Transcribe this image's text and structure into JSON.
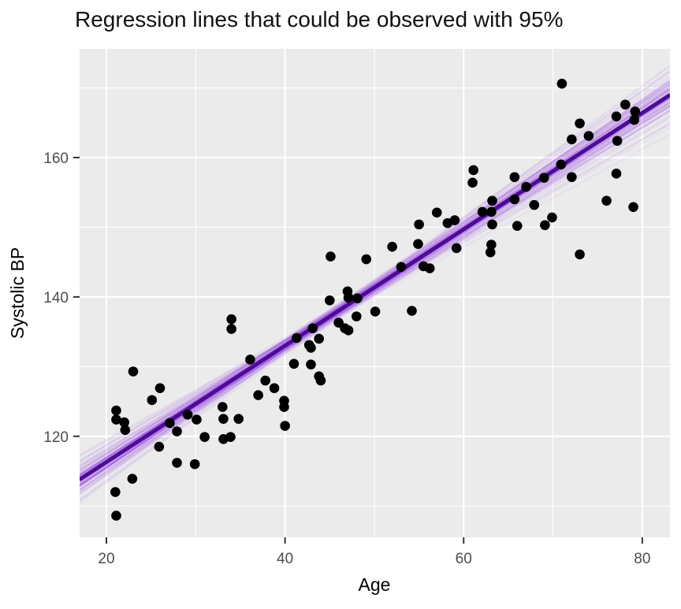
{
  "chart_data": {
    "type": "scatter",
    "title": "Regression lines that could be observed with 95%",
    "xlabel": "Age",
    "ylabel": "Systolic BP",
    "xlim": [
      17.0,
      83.1
    ],
    "ylim": [
      105.5,
      175.6
    ],
    "x_ticks": [
      20,
      40,
      60,
      80
    ],
    "y_ticks": [
      120,
      140,
      160
    ],
    "x_minor_ticks": [
      30,
      50,
      70
    ],
    "y_minor_ticks": [
      110,
      130,
      150,
      170
    ],
    "grid": "major-and-minor-white-on-grey",
    "legend": "none",
    "points": [
      [
        21.1,
        123.7
      ],
      [
        21.1,
        122.4
      ],
      [
        22.0,
        122.0
      ],
      [
        22.1,
        120.9
      ],
      [
        21.0,
        112.0
      ],
      [
        21.1,
        108.6
      ],
      [
        22.9,
        113.9
      ],
      [
        23.0,
        129.3
      ],
      [
        25.1,
        125.2
      ],
      [
        26.0,
        126.9
      ],
      [
        25.9,
        118.5
      ],
      [
        27.1,
        121.9
      ],
      [
        27.9,
        120.7
      ],
      [
        27.9,
        116.2
      ],
      [
        29.9,
        116.0
      ],
      [
        29.1,
        123.1
      ],
      [
        30.1,
        122.4
      ],
      [
        31.0,
        119.9
      ],
      [
        33.1,
        119.6
      ],
      [
        33.9,
        119.9
      ],
      [
        33.0,
        124.2
      ],
      [
        33.1,
        122.5
      ],
      [
        34.8,
        122.5
      ],
      [
        34.0,
        136.8
      ],
      [
        34.0,
        135.4
      ],
      [
        36.1,
        131.0
      ],
      [
        37.8,
        128.0
      ],
      [
        38.8,
        126.9
      ],
      [
        37.0,
        125.9
      ],
      [
        39.9,
        125.1
      ],
      [
        39.9,
        124.2
      ],
      [
        40.0,
        121.5
      ],
      [
        44.0,
        128.0
      ],
      [
        41.3,
        134.1
      ],
      [
        43.8,
        134.0
      ],
      [
        42.7,
        133.1
      ],
      [
        42.9,
        132.7
      ],
      [
        43.1,
        135.5
      ],
      [
        46.7,
        135.5
      ],
      [
        41.0,
        130.4
      ],
      [
        42.9,
        130.3
      ],
      [
        43.8,
        128.6
      ],
      [
        45.0,
        139.5
      ],
      [
        45.1,
        145.8
      ],
      [
        46.0,
        136.3
      ],
      [
        47.1,
        135.2
      ],
      [
        47.0,
        140.8
      ],
      [
        47.1,
        139.9
      ],
      [
        48.1,
        139.8
      ],
      [
        48.0,
        137.2
      ],
      [
        49.1,
        145.4
      ],
      [
        50.1,
        137.9
      ],
      [
        52.0,
        147.2
      ],
      [
        53.0,
        144.3
      ],
      [
        54.2,
        138.0
      ],
      [
        54.9,
        147.6
      ],
      [
        55.0,
        150.4
      ],
      [
        55.5,
        144.4
      ],
      [
        56.2,
        144.1
      ],
      [
        57.0,
        152.1
      ],
      [
        58.2,
        150.6
      ],
      [
        59.0,
        151.0
      ],
      [
        59.2,
        147.0
      ],
      [
        61.1,
        158.2
      ],
      [
        61.0,
        156.4
      ],
      [
        62.1,
        152.2
      ],
      [
        63.2,
        153.8
      ],
      [
        63.1,
        152.2
      ],
      [
        63.2,
        150.4
      ],
      [
        63.1,
        147.5
      ],
      [
        63.0,
        146.4
      ],
      [
        65.7,
        157.2
      ],
      [
        65.7,
        154.0
      ],
      [
        66.0,
        150.2
      ],
      [
        67.0,
        155.8
      ],
      [
        67.9,
        153.2
      ],
      [
        69.0,
        157.1
      ],
      [
        69.1,
        150.3
      ],
      [
        69.9,
        151.4
      ],
      [
        70.9,
        159.0
      ],
      [
        71.0,
        170.6
      ],
      [
        72.1,
        162.6
      ],
      [
        72.1,
        157.2
      ],
      [
        73.0,
        164.9
      ],
      [
        73.0,
        146.1
      ],
      [
        74.0,
        163.1
      ],
      [
        77.1,
        165.9
      ],
      [
        78.1,
        167.6
      ],
      [
        79.2,
        166.6
      ],
      [
        79.1,
        165.4
      ],
      [
        77.2,
        162.4
      ],
      [
        77.1,
        157.7
      ],
      [
        76.0,
        153.8
      ],
      [
        79.0,
        152.9
      ]
    ],
    "fit_line": {
      "slope": 0.835,
      "intercept": 99.6,
      "color": "#4c0c96",
      "width": 5
    },
    "ensemble_lines": {
      "pivot_age": 50,
      "color": "#8a2be2",
      "width": 2.5,
      "lines": [
        [
          0.78,
          140.9,
          0.1
        ],
        [
          0.8,
          141.0,
          0.12
        ],
        [
          0.82,
          141.5,
          0.14
        ],
        [
          0.84,
          141.2,
          0.14
        ],
        [
          0.86,
          141.6,
          0.12
        ],
        [
          0.88,
          141.9,
          0.1
        ],
        [
          0.9,
          141.4,
          0.08
        ],
        [
          0.92,
          142.1,
          0.07
        ],
        [
          0.76,
          140.6,
          0.08
        ],
        [
          0.74,
          140.4,
          0.07
        ],
        [
          0.83,
          141.0,
          0.16
        ],
        [
          0.85,
          141.5,
          0.16
        ],
        [
          0.81,
          141.2,
          0.15
        ],
        [
          0.87,
          141.1,
          0.11
        ],
        [
          0.79,
          141.7,
          0.1
        ],
        [
          0.84,
          140.8,
          0.15
        ],
        [
          0.86,
          140.6,
          0.1
        ],
        [
          0.82,
          142.0,
          0.11
        ],
        [
          0.88,
          140.9,
          0.09
        ],
        [
          0.8,
          140.3,
          0.09
        ],
        [
          0.84,
          142.3,
          0.09
        ],
        [
          0.9,
          142.5,
          0.06
        ],
        [
          0.72,
          141.0,
          0.06
        ],
        [
          0.95,
          141.8,
          0.05
        ],
        [
          0.7,
          140.2,
          0.05
        ],
        [
          0.83,
          141.8,
          0.14
        ],
        [
          0.85,
          140.9,
          0.14
        ],
        [
          0.81,
          140.5,
          0.12
        ],
        [
          0.87,
          141.7,
          0.12
        ],
        [
          0.83,
          140.2,
          0.11
        ],
        [
          0.86,
          142.2,
          0.1
        ],
        [
          0.78,
          141.5,
          0.09
        ],
        [
          0.89,
          141.6,
          0.08
        ],
        [
          0.77,
          141.9,
          0.07
        ],
        [
          0.91,
          140.8,
          0.06
        ],
        [
          0.84,
          141.4,
          0.18
        ],
        [
          0.82,
          141.3,
          0.18
        ],
        [
          0.85,
          141.1,
          0.17
        ],
        [
          0.83,
          141.6,
          0.17
        ],
        [
          0.86,
          141.3,
          0.15
        ],
        [
          0.8,
          141.6,
          0.13
        ],
        [
          0.88,
          141.3,
          0.1
        ],
        [
          0.75,
          141.2,
          0.07
        ],
        [
          0.93,
          141.5,
          0.05
        ],
        [
          0.84,
          141.9,
          0.12
        ],
        [
          0.82,
          140.7,
          0.12
        ],
        [
          0.87,
          142.0,
          0.09
        ],
        [
          0.79,
          140.7,
          0.08
        ],
        [
          0.85,
          142.4,
          0.08
        ],
        [
          0.81,
          141.8,
          0.1
        ],
        [
          0.89,
          142.2,
          0.07
        ],
        [
          0.76,
          141.4,
          0.06
        ],
        [
          0.94,
          142.0,
          0.04
        ],
        [
          0.71,
          140.8,
          0.04
        ],
        [
          0.835,
          141.3,
          0.2
        ]
      ]
    },
    "colors": {
      "panel_bg": "#ebebeb",
      "grid": "#ffffff",
      "point": "#000000",
      "tick_mark": "#333333",
      "tick_text": "#4d4d4d",
      "title_text": "#111111",
      "axis_title_text": "#000000"
    },
    "point_radius": 6.3
  }
}
